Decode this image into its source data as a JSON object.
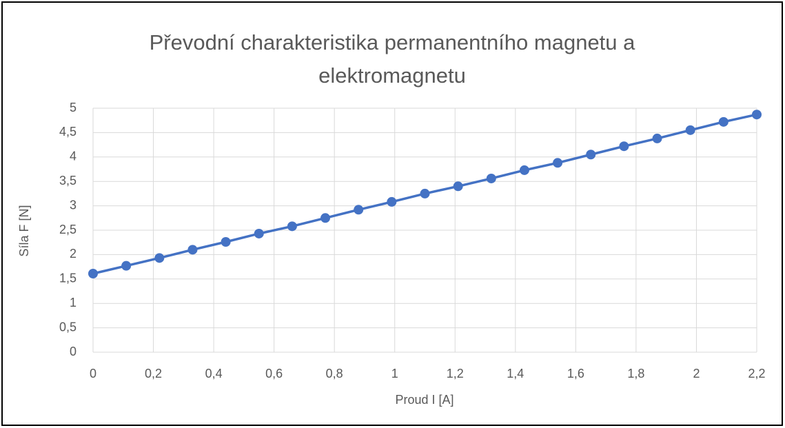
{
  "chart_data": {
    "type": "line",
    "title": "Převodní charakteristika permanentního magnetu a elektromagnetu",
    "x_label": "Proud I [A]",
    "y_label": "Síla F [N]",
    "x": [
      0,
      0.11,
      0.22,
      0.33,
      0.44,
      0.55,
      0.66,
      0.77,
      0.88,
      0.99,
      1.1,
      1.21,
      1.32,
      1.43,
      1.54,
      1.65,
      1.76,
      1.87,
      1.98,
      2.09,
      2.2
    ],
    "series": [
      {
        "name": "Síla F",
        "color": "#4472c4",
        "values": [
          1.61,
          1.77,
          1.93,
          2.1,
          2.26,
          2.43,
          2.58,
          2.75,
          2.92,
          3.08,
          3.25,
          3.4,
          3.56,
          3.73,
          3.88,
          4.05,
          4.22,
          4.38,
          4.55,
          4.72,
          4.87
        ]
      }
    ],
    "xlim": [
      0,
      2.2
    ],
    "xticks": [
      0,
      {
        "value": 0.2,
        "label": "0,2"
      },
      {
        "value": 0.4,
        "label": "0,4"
      },
      {
        "value": 0.6,
        "label": "0,6"
      },
      {
        "value": 0.8,
        "label": "0,8"
      },
      1,
      {
        "value": 1.2,
        "label": "1,2"
      },
      {
        "value": 1.4,
        "label": "1,4"
      },
      {
        "value": 1.6,
        "label": "1,6"
      },
      {
        "value": 1.8,
        "label": "1,8"
      },
      2,
      {
        "value": 2.2,
        "label": "2,2"
      }
    ],
    "ylim": [
      0,
      5
    ],
    "yticks": [
      0,
      {
        "value": 0.5,
        "label": "0,5"
      },
      1,
      {
        "value": 1.5,
        "label": "1,5"
      },
      2,
      {
        "value": 2.5,
        "label": "2,5"
      },
      3,
      {
        "value": 3.5,
        "label": "3,5"
      },
      4,
      {
        "value": 4.5,
        "label": "4,5"
      },
      5
    ],
    "grid": true
  }
}
